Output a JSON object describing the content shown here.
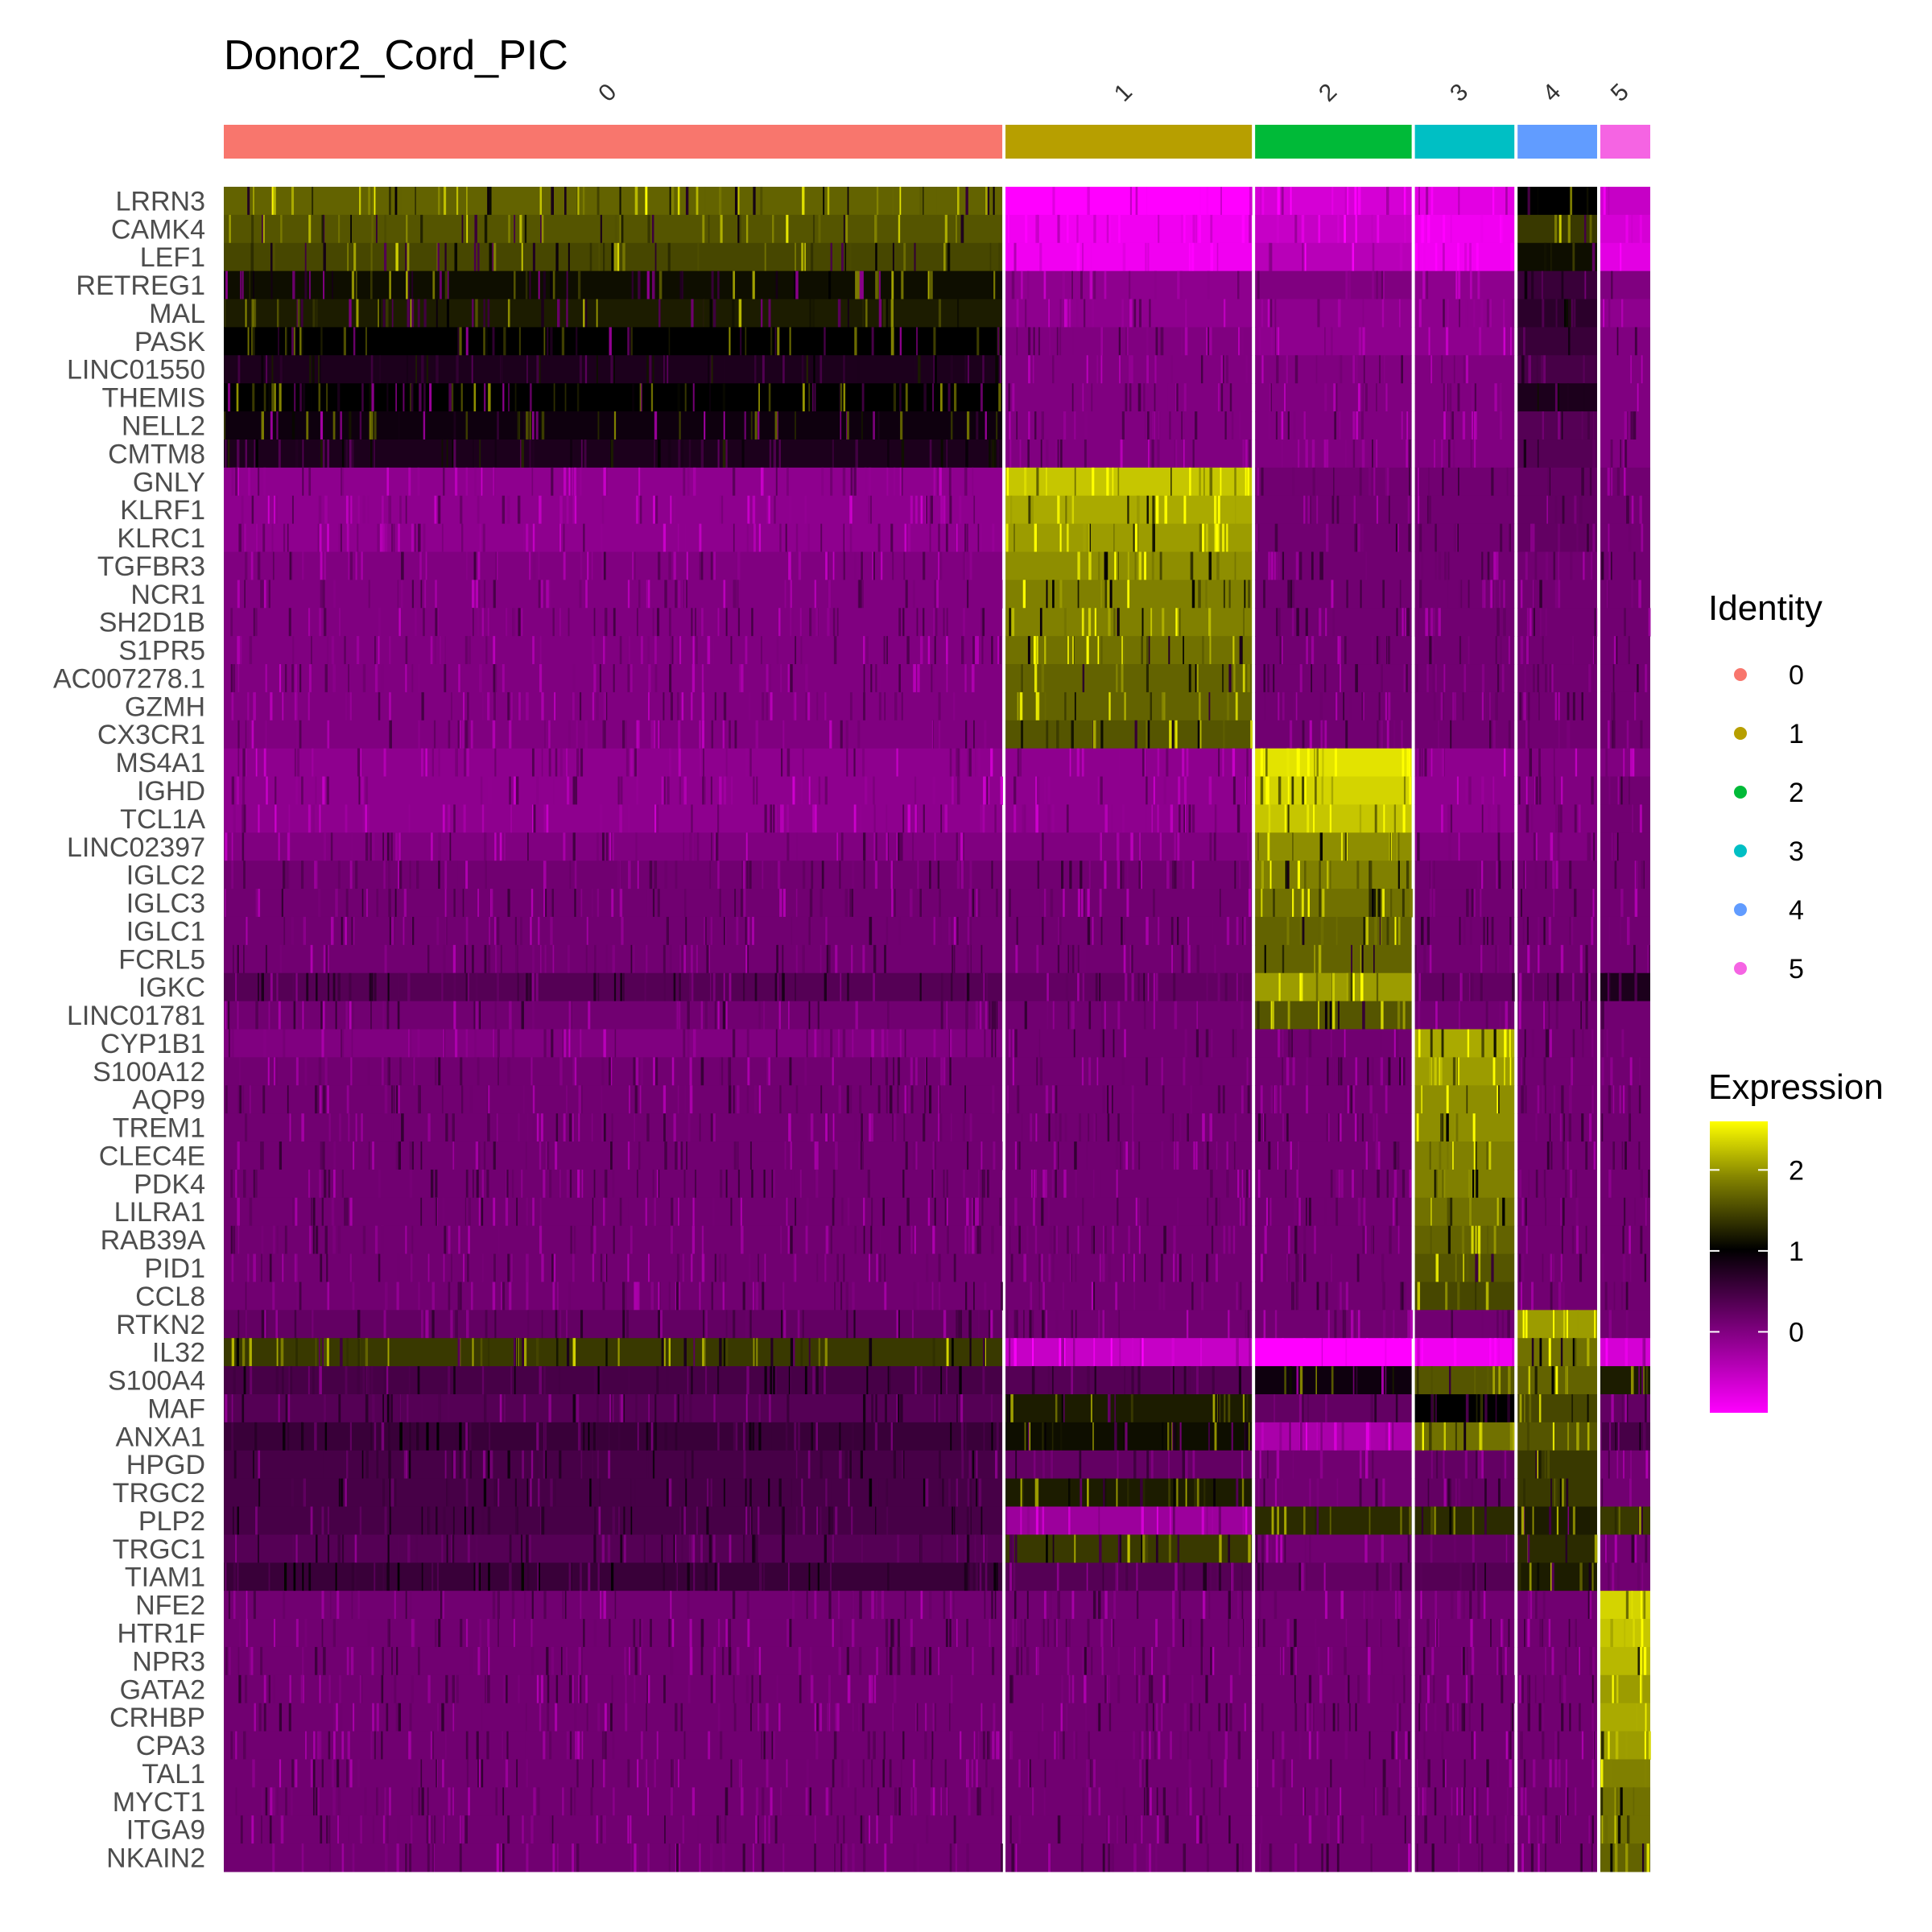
{
  "chart_data": {
    "type": "heatmap",
    "title": "Donor2_Cord_PIC",
    "genes": [
      "LRRN3",
      "CAMK4",
      "LEF1",
      "RETREG1",
      "MAL",
      "PASK",
      "LINC01550",
      "THEMIS",
      "NELL2",
      "CMTM8",
      "GNLY",
      "KLRF1",
      "KLRC1",
      "TGFBR3",
      "NCR1",
      "SH2D1B",
      "S1PR5",
      "AC007278.1",
      "GZMH",
      "CX3CR1",
      "MS4A1",
      "IGHD",
      "TCL1A",
      "LINC02397",
      "IGLC2",
      "IGLC3",
      "IGLC1",
      "FCRL5",
      "IGKC",
      "LINC01781",
      "CYP1B1",
      "S100A12",
      "AQP9",
      "TREM1",
      "CLEC4E",
      "PDK4",
      "LILRA1",
      "RAB39A",
      "PID1",
      "CCL8",
      "RTKN2",
      "IL32",
      "S100A4",
      "MAF",
      "ANXA1",
      "HPGD",
      "TRGC2",
      "PLP2",
      "TRGC1",
      "TIAM1",
      "NFE2",
      "HTR1F",
      "NPR3",
      "GATA2",
      "CRHBP",
      "CPA3",
      "TAL1",
      "MYCT1",
      "ITGA9",
      "NKAIN2"
    ],
    "clusters": [
      {
        "label": "0",
        "color": "#F8766D",
        "cell_fraction": 0.548
      },
      {
        "label": "1",
        "color": "#B79F00",
        "cell_fraction": 0.175
      },
      {
        "label": "2",
        "color": "#00BA38",
        "cell_fraction": 0.112
      },
      {
        "label": "3",
        "color": "#00BFC4",
        "cell_fraction": 0.072
      },
      {
        "label": "4",
        "color": "#619CFF",
        "cell_fraction": 0.058
      },
      {
        "label": "5",
        "color": "#F564E3",
        "cell_fraction": 0.035
      }
    ],
    "mean_expression": [
      [
        1.5,
        -1.0,
        -0.7,
        -0.8,
        0.8,
        -0.6
      ],
      [
        1.4,
        -0.9,
        -0.6,
        -0.9,
        1.2,
        -0.7
      ],
      [
        1.3,
        -0.9,
        -0.5,
        -0.9,
        0.9,
        -0.8
      ],
      [
        0.9,
        -0.2,
        -0.1,
        -0.2,
        0.4,
        -0.1
      ],
      [
        1.0,
        -0.2,
        -0.2,
        -0.2,
        0.5,
        -0.2
      ],
      [
        0.8,
        -0.1,
        -0.2,
        -0.2,
        0.4,
        -0.1
      ],
      [
        0.6,
        -0.1,
        -0.1,
        -0.1,
        0.3,
        -0.1
      ],
      [
        0.8,
        -0.1,
        -0.1,
        -0.1,
        0.6,
        -0.1
      ],
      [
        0.7,
        -0.1,
        -0.1,
        -0.1,
        0.2,
        -0.1
      ],
      [
        0.6,
        -0.1,
        -0.1,
        -0.1,
        0.2,
        -0.1
      ],
      [
        -0.2,
        2.2,
        0.0,
        0.0,
        0.1,
        0.0
      ],
      [
        -0.2,
        2.0,
        0.0,
        0.0,
        0.1,
        0.0
      ],
      [
        -0.2,
        1.9,
        0.0,
        0.0,
        0.1,
        0.0
      ],
      [
        -0.1,
        1.8,
        0.0,
        0.0,
        0.0,
        0.0
      ],
      [
        -0.1,
        1.7,
        0.0,
        0.0,
        0.0,
        0.0
      ],
      [
        -0.1,
        1.7,
        0.0,
        0.0,
        0.0,
        0.0
      ],
      [
        -0.1,
        1.6,
        0.0,
        0.0,
        0.0,
        0.0
      ],
      [
        -0.1,
        1.5,
        0.0,
        0.0,
        0.0,
        0.0
      ],
      [
        -0.1,
        1.5,
        0.0,
        0.0,
        0.0,
        0.0
      ],
      [
        -0.1,
        1.4,
        0.0,
        0.0,
        0.0,
        0.0
      ],
      [
        -0.2,
        -0.2,
        2.4,
        -0.2,
        -0.1,
        -0.1
      ],
      [
        -0.2,
        -0.2,
        2.3,
        -0.2,
        -0.1,
        0.0
      ],
      [
        -0.2,
        -0.2,
        2.2,
        -0.2,
        -0.1,
        0.0
      ],
      [
        -0.1,
        -0.1,
        1.8,
        -0.1,
        -0.1,
        0.0
      ],
      [
        0.0,
        0.0,
        1.7,
        0.0,
        0.0,
        0.0
      ],
      [
        0.0,
        0.0,
        1.6,
        0.0,
        0.0,
        0.0
      ],
      [
        0.0,
        0.0,
        1.5,
        0.0,
        0.0,
        0.0
      ],
      [
        0.0,
        0.0,
        1.5,
        0.0,
        0.0,
        0.0
      ],
      [
        0.2,
        0.1,
        1.9,
        0.1,
        0.1,
        0.6
      ],
      [
        0.0,
        0.0,
        1.4,
        0.0,
        0.0,
        0.0
      ],
      [
        -0.1,
        0.0,
        0.0,
        2.0,
        0.0,
        0.0
      ],
      [
        0.0,
        0.0,
        0.0,
        1.9,
        0.0,
        0.0
      ],
      [
        0.0,
        0.0,
        0.0,
        1.8,
        0.0,
        0.0
      ],
      [
        0.0,
        0.0,
        0.0,
        1.8,
        0.0,
        0.0
      ],
      [
        0.0,
        0.0,
        0.0,
        1.7,
        0.0,
        0.0
      ],
      [
        0.0,
        0.0,
        0.0,
        1.7,
        0.0,
        0.0
      ],
      [
        0.0,
        0.0,
        0.0,
        1.6,
        0.0,
        0.0
      ],
      [
        0.0,
        0.0,
        0.0,
        1.5,
        0.0,
        0.0
      ],
      [
        0.0,
        0.0,
        0.0,
        1.4,
        0.0,
        0.0
      ],
      [
        0.0,
        0.0,
        0.0,
        1.3,
        0.0,
        0.0
      ],
      [
        0.1,
        0.0,
        0.0,
        0.0,
        1.9,
        0.0
      ],
      [
        1.2,
        -0.6,
        -1.0,
        -0.9,
        1.6,
        -0.7
      ],
      [
        0.3,
        0.2,
        0.7,
        1.4,
        1.5,
        1.0
      ],
      [
        0.2,
        1.0,
        0.1,
        0.8,
        1.3,
        0.1
      ],
      [
        0.4,
        0.9,
        -0.4,
        1.6,
        1.4,
        0.3
      ],
      [
        0.3,
        0.1,
        0.0,
        0.1,
        1.2,
        0.0
      ],
      [
        0.3,
        1.0,
        0.0,
        0.1,
        1.2,
        0.0
      ],
      [
        0.3,
        -0.3,
        1.1,
        1.1,
        1.0,
        1.2
      ],
      [
        0.2,
        1.2,
        0.0,
        0.1,
        1.1,
        0.0
      ],
      [
        0.4,
        0.2,
        0.1,
        0.2,
        1.0,
        0.0
      ],
      [
        0.0,
        0.0,
        0.0,
        0.0,
        0.0,
        2.3
      ],
      [
        0.0,
        0.0,
        0.0,
        0.0,
        0.0,
        2.2
      ],
      [
        0.0,
        0.0,
        0.0,
        0.0,
        0.0,
        2.1
      ],
      [
        0.0,
        0.0,
        0.0,
        0.0,
        0.0,
        1.9
      ],
      [
        0.0,
        0.0,
        0.0,
        0.0,
        0.0,
        2.0
      ],
      [
        0.0,
        0.0,
        0.0,
        0.0,
        0.0,
        1.9
      ],
      [
        0.0,
        0.0,
        0.0,
        0.0,
        0.0,
        1.7
      ],
      [
        0.0,
        0.0,
        0.0,
        0.0,
        0.0,
        1.6
      ],
      [
        0.0,
        0.0,
        0.0,
        0.0,
        0.0,
        1.6
      ],
      [
        0.0,
        0.0,
        0.0,
        0.0,
        0.0,
        1.5
      ]
    ],
    "color_scale": {
      "low": "#FF00FF",
      "mid": "#000000",
      "high": "#FFFF00",
      "domain": [
        -1,
        2.6
      ]
    },
    "legend_identity": {
      "title": "Identity",
      "entries": [
        "0",
        "1",
        "2",
        "3",
        "4",
        "5"
      ]
    },
    "legend_expression": {
      "title": "Expression",
      "ticks": [
        "0",
        "1",
        "2"
      ],
      "tick_values": [
        0,
        1,
        2
      ]
    }
  }
}
